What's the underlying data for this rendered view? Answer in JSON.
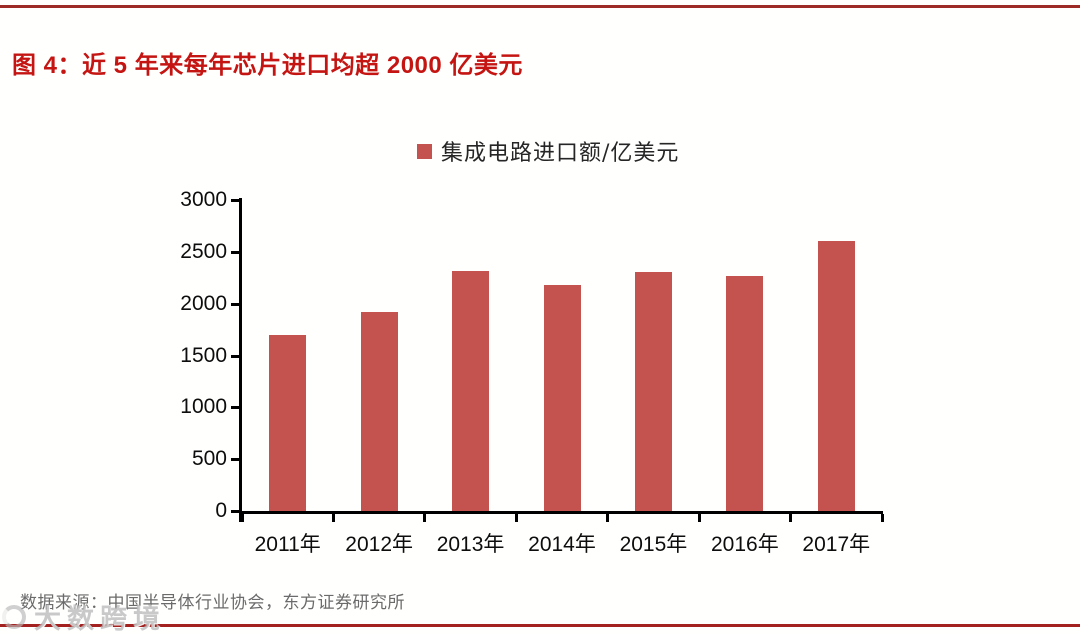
{
  "header": {
    "title": "图 4：近 5 年来每年芯片进口均超 2000 亿美元"
  },
  "footer": {
    "source": "数据来源：中国半导体行业协会，东方证券研究所",
    "watermark": "大数跨境"
  },
  "colors": {
    "title_red": "#C41512",
    "rule_red": "#9E2A26",
    "bar_red": "#C4524F",
    "axis_black": "#000000",
    "source_gray": "#6B6B6B"
  },
  "chart_data": {
    "type": "bar",
    "title": "",
    "legend": [
      "集成电路进口额/亿美元"
    ],
    "legend_position": "top-center",
    "categories": [
      "2011年",
      "2012年",
      "2013年",
      "2014年",
      "2015年",
      "2016年",
      "2017年"
    ],
    "values": [
      1702,
      1921,
      2313,
      2176,
      2307,
      2271,
      2601
    ],
    "xlabel": "",
    "ylabel": "",
    "ylim": [
      0,
      3000
    ],
    "yticks": [
      0,
      500,
      1000,
      1500,
      2000,
      2500,
      3000
    ],
    "grid": false,
    "bar_color": "#C4524F"
  }
}
